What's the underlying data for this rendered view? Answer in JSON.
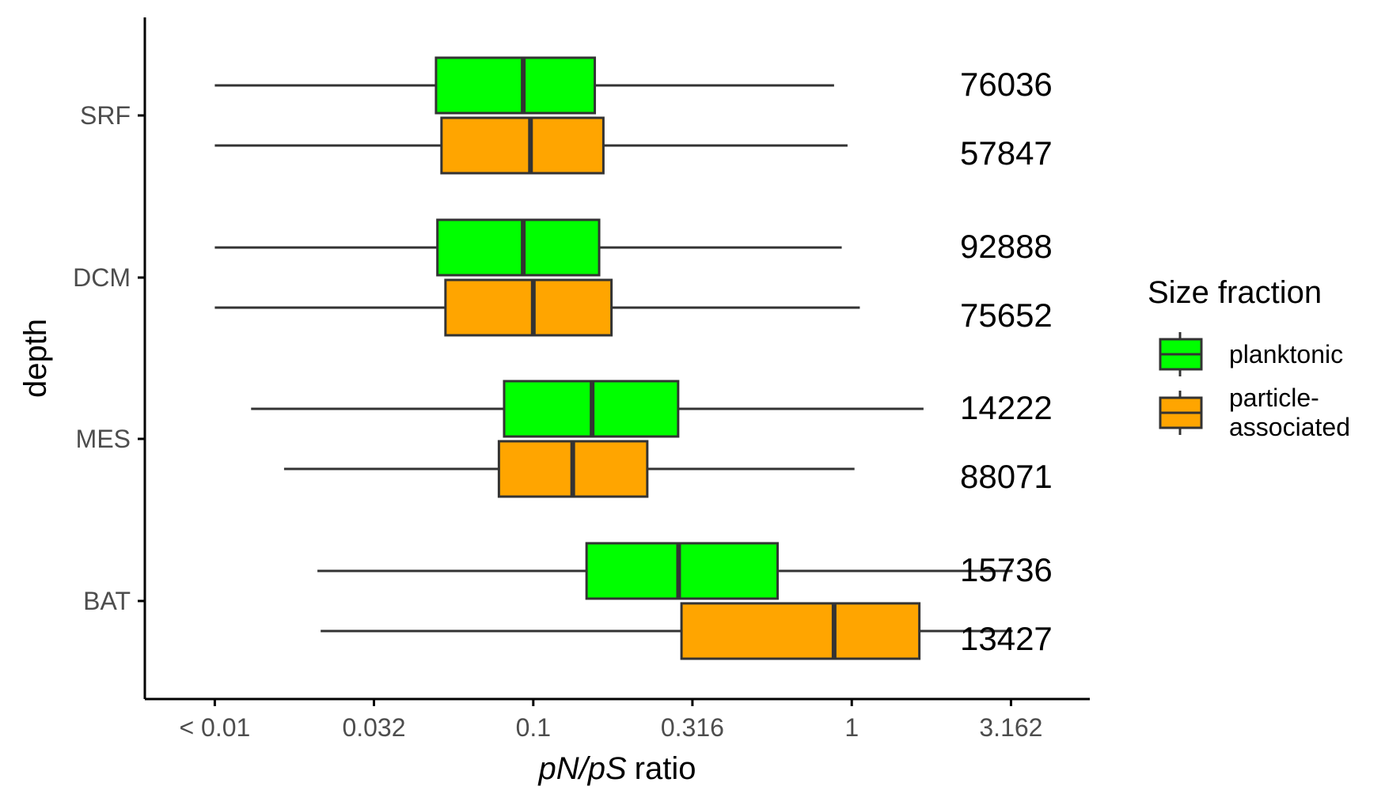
{
  "chart_data": {
    "type": "boxplot",
    "orientation": "horizontal",
    "x_scale": "log10",
    "xlabel_italic": "pN/pS",
    "xlabel_plain": "ratio",
    "ylabel": "depth",
    "x_ticks": [
      {
        "value": 0.01,
        "label": "< 0.01"
      },
      {
        "value": 0.0316,
        "label": "0.032"
      },
      {
        "value": 0.1,
        "label": "0.1"
      },
      {
        "value": 0.316,
        "label": "0.316"
      },
      {
        "value": 1,
        "label": "1"
      },
      {
        "value": 3.162,
        "label": "3.162"
      }
    ],
    "xlim": [
      0.00603,
      5.59
    ],
    "categories": [
      "SRF",
      "DCM",
      "MES",
      "BAT"
    ],
    "legend": {
      "title": "Size fraction",
      "position": "right",
      "entries": [
        {
          "label_lines": [
            "planktonic"
          ],
          "color": "#00FF00"
        },
        {
          "label_lines": [
            "particle-",
            "associated"
          ],
          "color": "#FFA500"
        }
      ]
    },
    "box_border_color": "#333333",
    "series": [
      {
        "name": "planktonic",
        "color": "#00FF00",
        "boxes": [
          {
            "category": "SRF",
            "whisker_low": 0.01,
            "q1": 0.0495,
            "median": 0.093,
            "q3": 0.156,
            "whisker_high": 0.88,
            "count": "76036"
          },
          {
            "category": "DCM",
            "whisker_low": 0.01,
            "q1": 0.05,
            "median": 0.093,
            "q3": 0.161,
            "whisker_high": 0.93,
            "count": "92888"
          },
          {
            "category": "MES",
            "whisker_low": 0.013,
            "q1": 0.081,
            "median": 0.153,
            "q3": 0.285,
            "whisker_high": 1.68,
            "count": "14222"
          },
          {
            "category": "BAT",
            "whisker_low": 0.021,
            "q1": 0.147,
            "median": 0.286,
            "q3": 0.585,
            "whisker_high": 3.2,
            "count": "15736"
          }
        ]
      },
      {
        "name": "particle-associated",
        "color": "#FFA500",
        "boxes": [
          {
            "category": "SRF",
            "whisker_low": 0.01,
            "q1": 0.0515,
            "median": 0.098,
            "q3": 0.166,
            "whisker_high": 0.97,
            "count": "57847"
          },
          {
            "category": "DCM",
            "whisker_low": 0.01,
            "q1": 0.053,
            "median": 0.1,
            "q3": 0.176,
            "whisker_high": 1.06,
            "count": "75652"
          },
          {
            "category": "MES",
            "whisker_low": 0.0165,
            "q1": 0.078,
            "median": 0.133,
            "q3": 0.228,
            "whisker_high": 1.02,
            "count": "88071"
          },
          {
            "category": "BAT",
            "whisker_low": 0.0215,
            "q1": 0.292,
            "median": 0.88,
            "q3": 1.63,
            "whisker_high": 3.2,
            "count": "13427"
          }
        ]
      }
    ]
  }
}
